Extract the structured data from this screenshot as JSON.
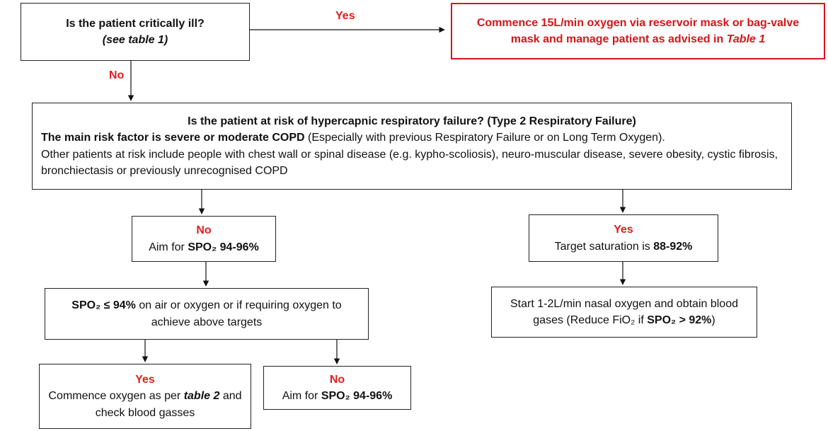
{
  "q1": {
    "text": "Is the patient critically ill?",
    "sub": "(see table 1)"
  },
  "yes_label_top": "Yes",
  "no_label_top": "No",
  "critical_action": {
    "part1": "Commence 15L/min oxygen via reservoir mask or bag-valve mask and manage patient as advised in ",
    "part2": "Table 1"
  },
  "q2": {
    "title": "Is the patient at risk of hypercapnic respiratory failure? (Type 2 Respiratory Failure)",
    "line2_bold": "The main risk factor is severe or moderate COPD",
    "line2_rest": " (Especially with previous Respiratory Failure or on Long Term Oxygen).",
    "line3": "Other patients at risk include people with chest wall or spinal disease (e.g. kypho-scoliosis), neuro-muscular disease, severe obesity, cystic fibrosis, bronchiectasis or previously unrecognised COPD"
  },
  "no_risk": {
    "label": "No",
    "text": "Aim for ",
    "target": "SPO₂ 94-96%"
  },
  "yes_risk": {
    "label": "Yes",
    "text": "Target saturation is ",
    "target": "88-92%"
  },
  "q3": {
    "bold": "SPO₂ ≤ 94%",
    "rest": " on air or oxygen or if requiring oxygen to achieve above targets"
  },
  "yes_risk_action": {
    "text": "Start 1-2L/min nasal oxygen and obtain blood gases (Reduce FiO₂ if ",
    "bold": "SPO₂ > 92%",
    "close": ")"
  },
  "q3_yes": {
    "label": "Yes",
    "part1": "Commence oxygen as per ",
    "part2": "table 2",
    "part3": " and check blood gasses"
  },
  "q3_no": {
    "label": "No",
    "text": "Aim for ",
    "target": "SPO₂ 94-96%"
  },
  "colors": {
    "accent_red": "#e01e1e",
    "border": "#222222"
  }
}
